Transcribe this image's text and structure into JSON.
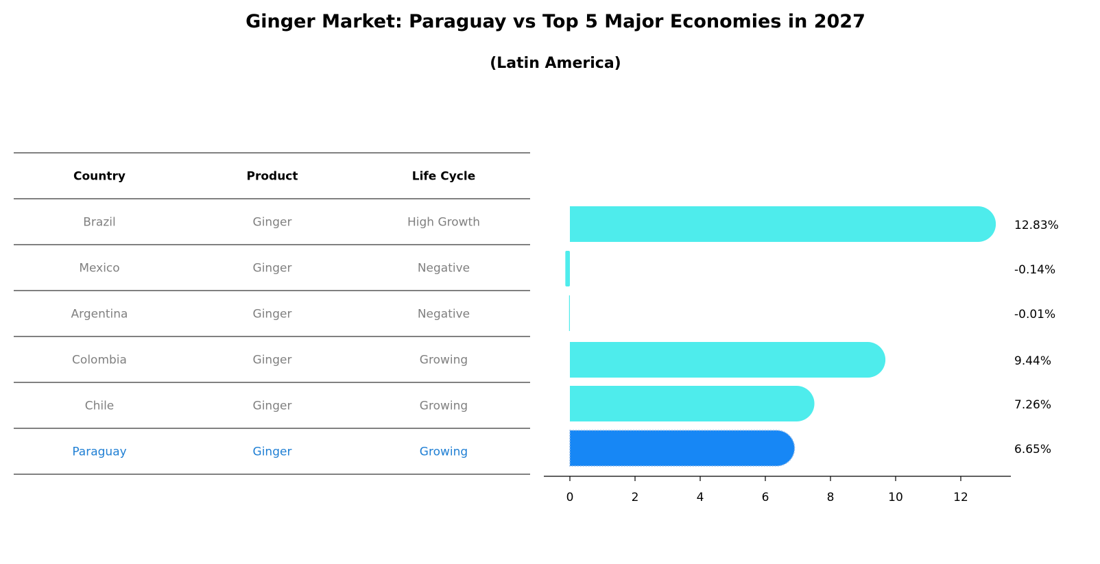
{
  "chart_data": {
    "type": "bar",
    "title": "Ginger Market: Paraguay vs Top 5 Major Economies in 2027",
    "subtitle": "(Latin America)",
    "table": {
      "headers": [
        "Country",
        "Product",
        "Life Cycle"
      ],
      "rows": [
        [
          "Brazil",
          "Ginger",
          "High Growth"
        ],
        [
          "Mexico",
          "Ginger",
          "Negative"
        ],
        [
          "Argentina",
          "Ginger",
          "Negative"
        ],
        [
          "Colombia",
          "Ginger",
          "Growing"
        ],
        [
          "Chile",
          "Ginger",
          "Growing"
        ],
        [
          "Paraguay",
          "Ginger",
          "Growing"
        ]
      ],
      "highlight_row": 5
    },
    "categories": [
      "Brazil",
      "Mexico",
      "Argentina",
      "Colombia",
      "Chile",
      "Paraguay"
    ],
    "values": [
      12.83,
      -0.14,
      -0.01,
      9.44,
      7.26,
      6.65
    ],
    "labels": [
      "12.83%",
      "-0.14%",
      "-0.01%",
      "9.44%",
      "7.26%",
      "6.65%"
    ],
    "xticks": [
      "0",
      "2",
      "4",
      "6",
      "8",
      "10",
      "12"
    ],
    "xtick_values": [
      0,
      2,
      4,
      6,
      8,
      10,
      12
    ],
    "xlim": [
      -0.8,
      13.5
    ],
    "orientation": "horizontal",
    "colors": {
      "bar": "#4EECEC",
      "highlight_bar": "#1787F5",
      "muted_text": "#808080",
      "highlight_text": "#1F7FD4"
    }
  }
}
